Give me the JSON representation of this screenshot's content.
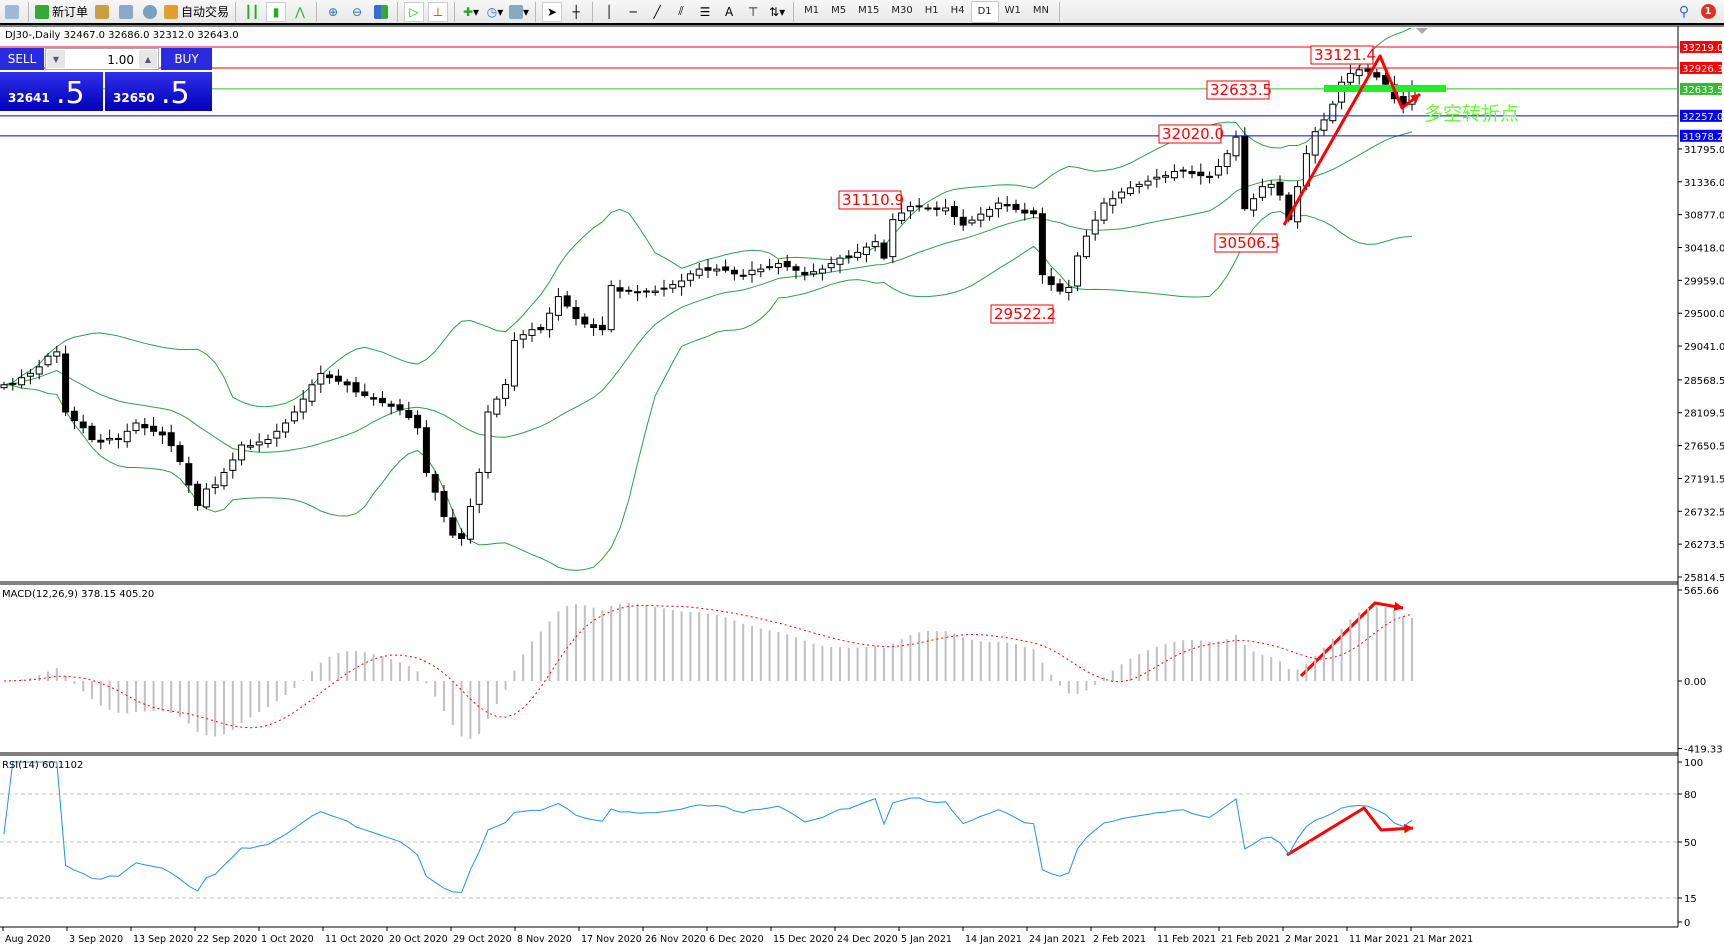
{
  "toolbar": {
    "new_order_label": "新订单",
    "auto_trading_label": "自动交易",
    "timeframes": [
      "M1",
      "M5",
      "M15",
      "M30",
      "H1",
      "H4",
      "D1",
      "W1",
      "MN"
    ],
    "active_timeframe": "D1",
    "notification_count": "1"
  },
  "chart": {
    "header": "DJ30-,Daily  32467.0 32686.0 32312.0 32643.0",
    "macd_label": "MACD(12,26,9) 378.15 405.20",
    "rsi_label": "RSI(14) 60.1102"
  },
  "trade_panel": {
    "sell_label": "SELL",
    "buy_label": "BUY",
    "lot": "1.00",
    "sell_price_main": "32641",
    "sell_price_big": ".5",
    "buy_price_main": "32650",
    "buy_price_big": ".5"
  },
  "colors": {
    "up_body": "#ffffff",
    "down_body": "#000000",
    "bands": "#2e9e4e",
    "macd_hist": "#c0c0c0",
    "macd_signal": "#ff0000",
    "rsi": "#1e90ff",
    "annotation": "#ff0000",
    "pivot_bar": "#22ee22"
  },
  "chart_data": {
    "type": "candlestick",
    "symbol": "DJ30-",
    "period": "Daily",
    "last_ohlc": {
      "open": 32467.0,
      "high": 32686.0,
      "low": 32312.0,
      "close": 32643.0
    },
    "closes": [
      28500,
      28520,
      28600,
      28660,
      28750,
      28900,
      28960,
      28120,
      28000,
      27900,
      27735,
      27700,
      27750,
      27735,
      27850,
      27966,
      27900,
      27850,
      27800,
      27650,
      27428,
      27100,
      26814,
      27044,
      27100,
      27275,
      27450,
      27659,
      27650,
      27700,
      27735,
      27850,
      27966,
      28120,
      28300,
      28500,
      28657,
      28600,
      28550,
      28500,
      28400,
      28350,
      28300,
      28250,
      28200,
      28150,
      28043,
      27900,
      27275,
      27000,
      26660,
      26400,
      26353,
      26800,
      27275,
      28120,
      28300,
      28503,
      29118,
      29200,
      29270,
      29270,
      29500,
      29732,
      29600,
      29425,
      29350,
      29300,
      29270,
      29886,
      29809,
      29820,
      29790,
      29800,
      29809,
      29850,
      29900,
      29950,
      30050,
      30116,
      30100,
      30116,
      30100,
      30050,
      30030,
      30100,
      30116,
      30150,
      30193,
      30150,
      30100,
      30039,
      30080,
      30116,
      30193,
      30270,
      30280,
      30350,
      30423,
      30500,
      30270,
      30807,
      30900,
      30992,
      31000,
      30960,
      30950,
      30970,
      30850,
      30731,
      30800,
      30884,
      30950,
      31038,
      31000,
      30950,
      30900,
      30890,
      30039,
      29900,
      29809,
      29860,
      30300,
      30577,
      30800,
      31038,
      31100,
      31192,
      31250,
      31300,
      31345,
      31400,
      31422,
      31480,
      31499,
      31450,
      31422,
      31400,
      31550,
      31729,
      31960,
      30961,
      31100,
      31268,
      31300,
      31150,
      30807,
      31268,
      31729,
      32036,
      32200,
      32420,
      32727,
      32850,
      32900,
      32880,
      32800,
      32700,
      32497,
      32420,
      32643
    ],
    "indicators": [
      "Bollinger Bands(20,2)",
      "MACD(12,26,9)",
      "RSI(14)"
    ],
    "price_axis_ticks": [
      "31795.0",
      "31336.0",
      "30877.0",
      "30418.0",
      "29959.0",
      "29500.0",
      "29041.0",
      "28568.5",
      "28109.5",
      "27650.5",
      "27191.5",
      "26732.5",
      "26273.5",
      "25814.5"
    ],
    "price_range": [
      25814.5,
      33219.0
    ],
    "horizontal_lines": [
      {
        "price": "33219.0",
        "color": "#ff0000"
      },
      {
        "price": "32926.3",
        "color": "#ff0000"
      },
      {
        "price": "32633.5",
        "color": "#33bb33"
      },
      {
        "price": "32257.0",
        "color": "#0000ff"
      },
      {
        "price": "31978.2",
        "color": "#0000ff"
      }
    ],
    "price_labels": [
      "33121.4",
      "32633.5",
      "32020.0",
      "31110.9",
      "30506.5",
      "29522.2"
    ],
    "annotation_text": "多空转折点",
    "macd_axis": [
      "565.66",
      "0.00",
      "-419.33"
    ],
    "rsi_axis": [
      "100",
      "80",
      "50",
      "15",
      "0"
    ],
    "rsi_levels": [
      80,
      50,
      15
    ],
    "date_labels": [
      "Aug 2020",
      "3 Sep 2020",
      "13 Sep 2020",
      "22 Sep 2020",
      "1 Oct 2020",
      "11 Oct 2020",
      "20 Oct 2020",
      "29 Oct 2020",
      "8 Nov 2020",
      "17 Nov 2020",
      "26 Nov 2020",
      "6 Dec 2020",
      "15 Dec 2020",
      "24 Dec 2020",
      "5 Jan 2021",
      "14 Jan 2021",
      "24 Jan 2021",
      "2 Feb 2021",
      "11 Feb 2021",
      "21 Feb 2021",
      "2 Mar 2021",
      "11 Mar 2021",
      "21 Mar 2021"
    ]
  }
}
